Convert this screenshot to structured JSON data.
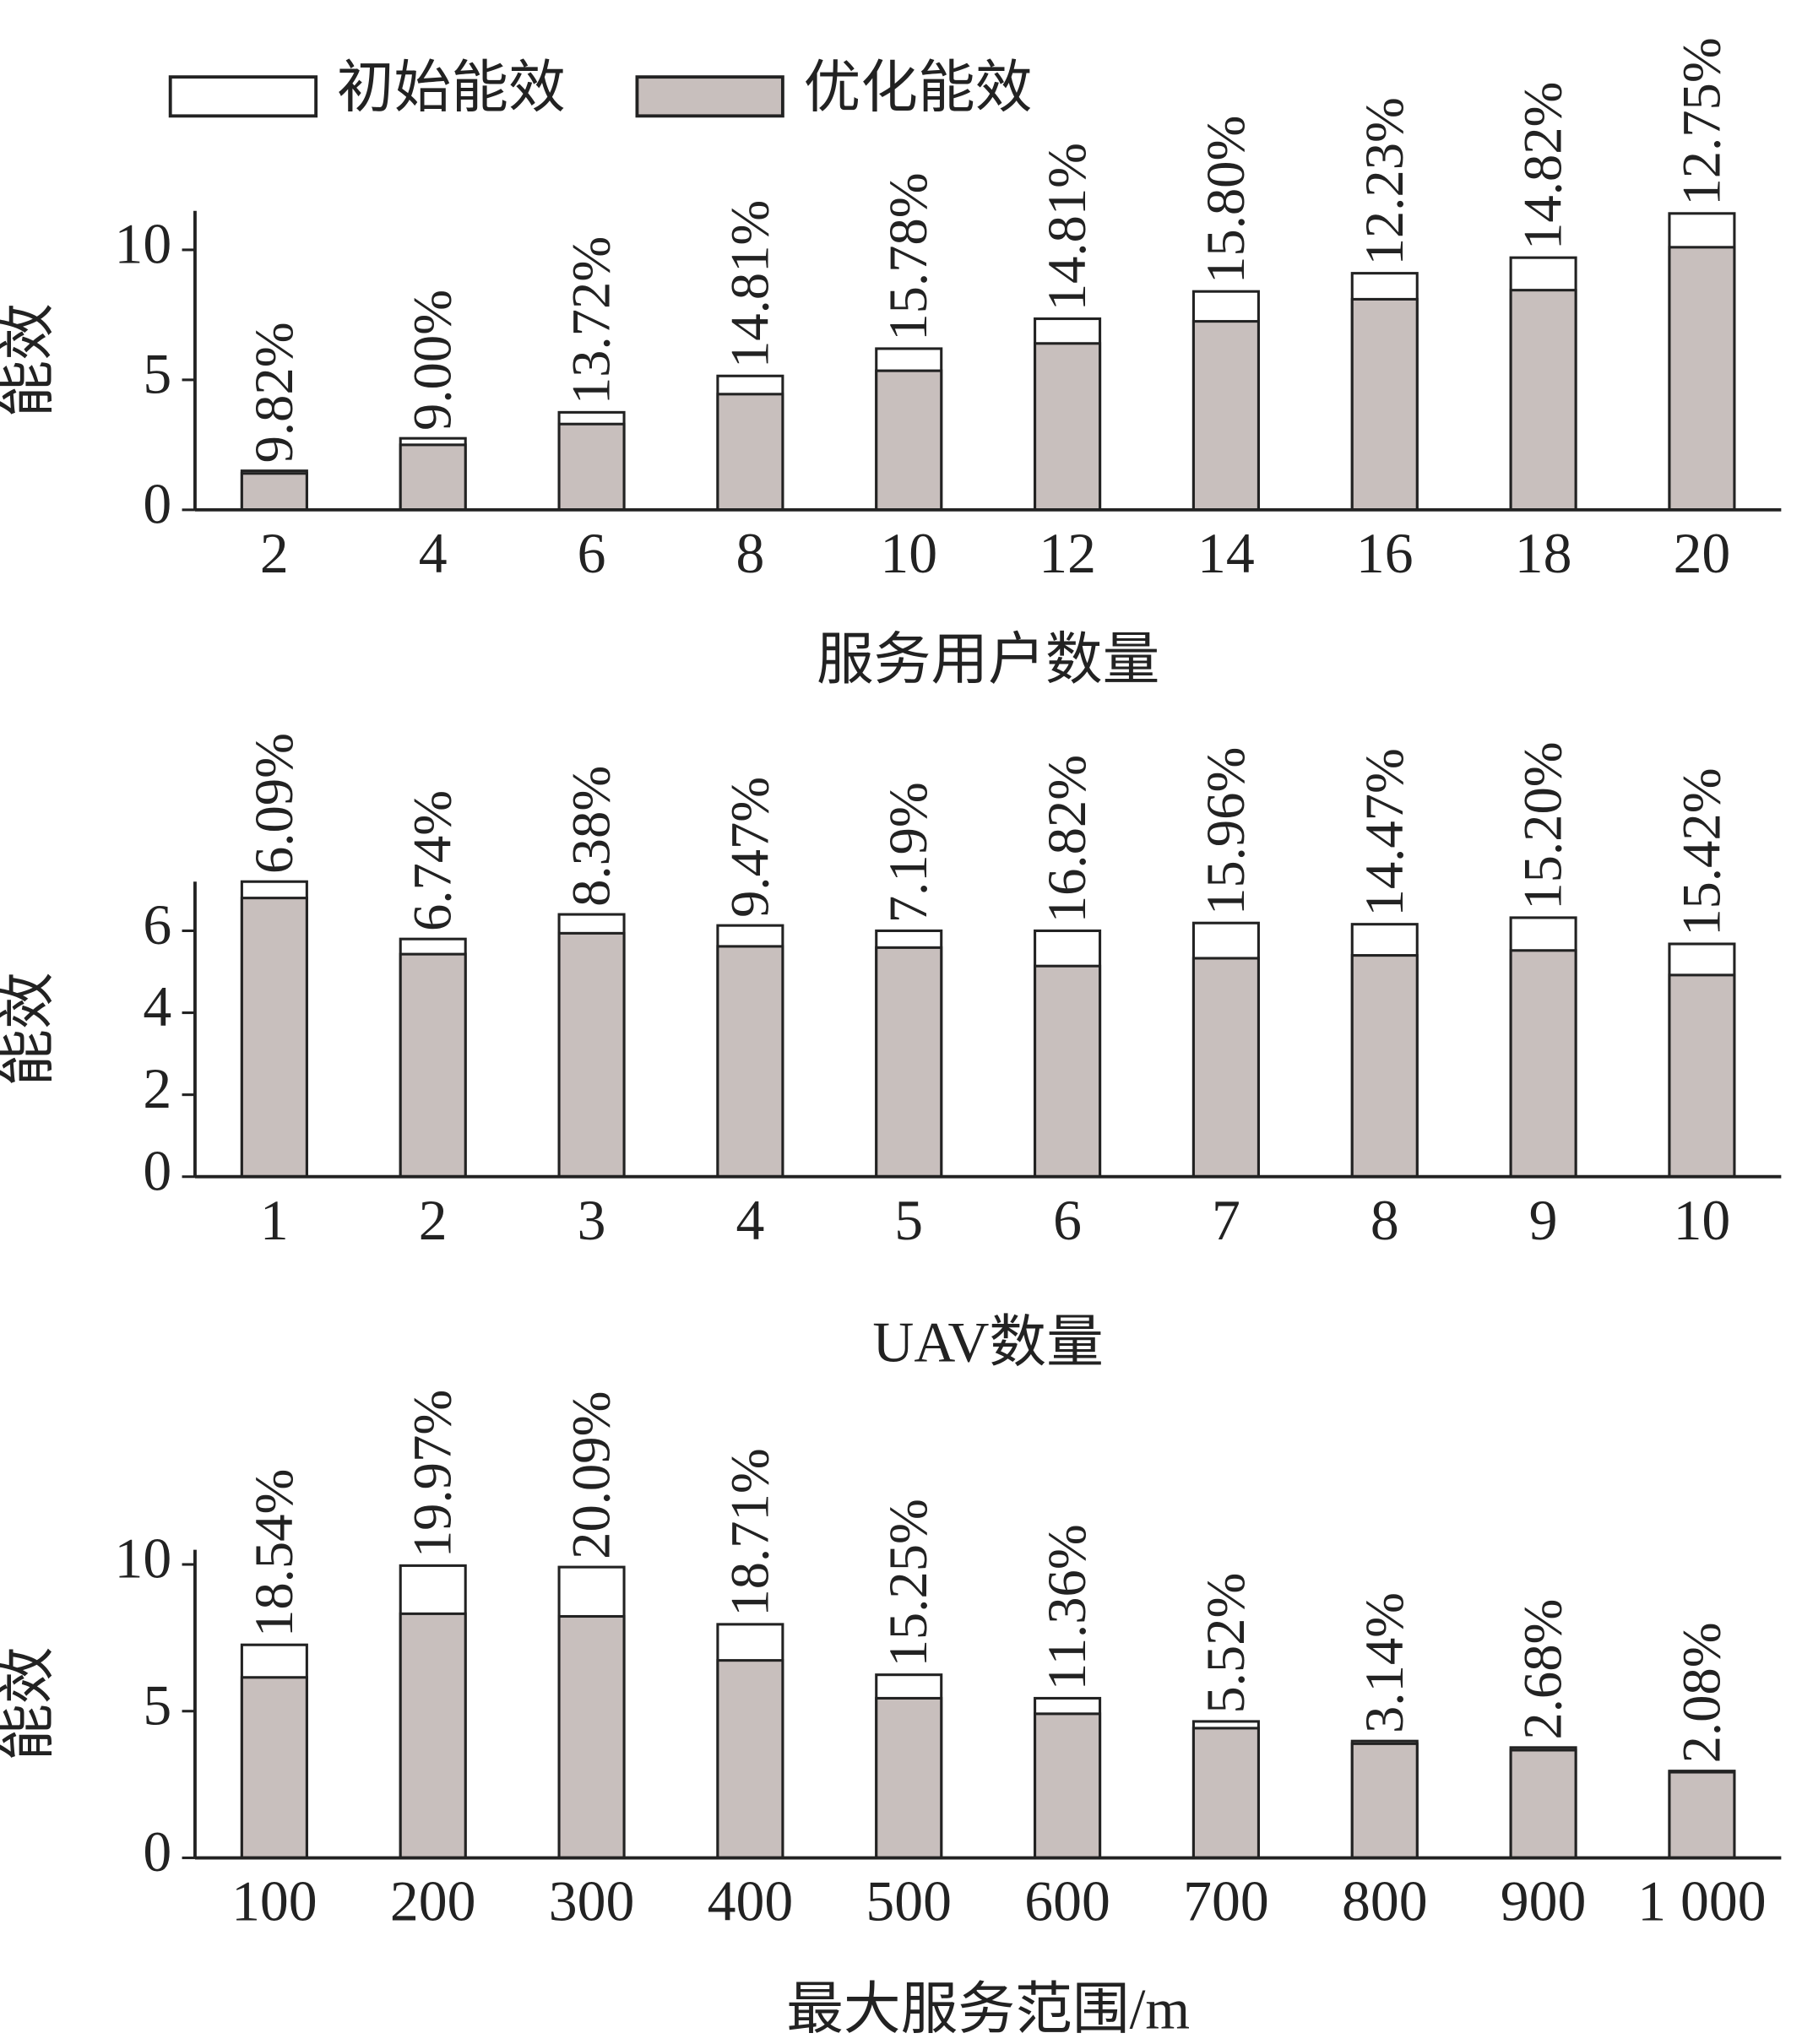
{
  "chart_data": [
    {
      "type": "bar",
      "x_label": "服务用户数量",
      "y_label": "能效",
      "categories": [
        "2",
        "4",
        "6",
        "8",
        "10",
        "12",
        "14",
        "16",
        "18",
        "20"
      ],
      "series": [
        {
          "name": "初始能效",
          "color": "#ffffff",
          "values": [
            1.5,
            2.75,
            3.75,
            5.15,
            6.2,
            7.35,
            8.4,
            9.1,
            9.7,
            11.4
          ]
        },
        {
          "name": "优化能效",
          "color": "#c8bfbd",
          "values": [
            1.4,
            2.5,
            3.3,
            4.45,
            5.35,
            6.4,
            7.25,
            8.1,
            8.45,
            10.1
          ]
        }
      ],
      "annotations": [
        "9.82%",
        "9.00%",
        "13.72%",
        "14.81%",
        "15.78%",
        "14.81%",
        "15.80%",
        "12.23%",
        "14.82%",
        "12.75%"
      ],
      "ylim": [
        0,
        11.5
      ],
      "yticks": [
        0,
        5,
        10
      ]
    },
    {
      "type": "bar",
      "x_label": "UAV数量",
      "y_label": "能效",
      "categories": [
        "1",
        "2",
        "3",
        "4",
        "5",
        "6",
        "7",
        "8",
        "9",
        "10"
      ],
      "series": [
        {
          "color": "#ffffff",
          "values": [
            7.2,
            5.8,
            6.4,
            6.13,
            6.0,
            6.0,
            6.19,
            6.16,
            6.32,
            5.68
          ]
        },
        {
          "color": "#c8bfbd",
          "values": [
            6.8,
            5.43,
            5.94,
            5.62,
            5.59,
            5.14,
            5.33,
            5.4,
            5.52,
            4.92
          ]
        }
      ],
      "annotations": [
        "6.09%",
        "6.74%",
        "8.38%",
        "9.47%",
        "7.19%",
        "16.82%",
        "15.96%",
        "14.47%",
        "15.20%",
        "15.42%"
      ],
      "ylim": [
        0,
        7.2
      ],
      "yticks": [
        0,
        2,
        4,
        6
      ]
    },
    {
      "type": "bar",
      "x_label": "最大服务范围/m",
      "y_label": "能效",
      "categories": [
        "100",
        "200",
        "300",
        "400",
        "500",
        "600",
        "700",
        "800",
        "900",
        "1 000"
      ],
      "series": [
        {
          "color": "#ffffff",
          "values": [
            7.26,
            9.96,
            9.91,
            7.96,
            6.24,
            5.44,
            4.65,
            3.98,
            3.76,
            2.96
          ]
        },
        {
          "color": "#c8bfbd",
          "values": [
            6.15,
            8.32,
            8.23,
            6.73,
            5.44,
            4.91,
            4.42,
            3.89,
            3.67,
            2.92
          ]
        }
      ],
      "annotations": [
        "18.54%",
        "19.97%",
        "20.09%",
        "18.71%",
        "15.25%",
        "11.36%",
        "5.52%",
        "3.14%",
        "2.68%",
        "2.08%"
      ],
      "ylim": [
        0,
        10.5
      ],
      "yticks": [
        0,
        5,
        10
      ]
    }
  ]
}
